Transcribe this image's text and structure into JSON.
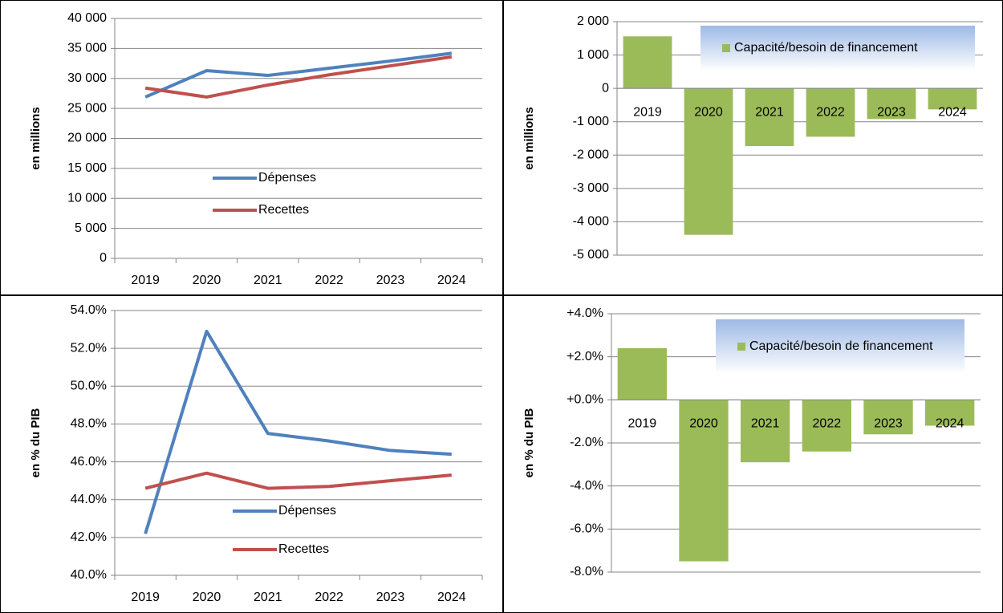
{
  "chart_data": [
    {
      "type": "line",
      "y_label": "en millions",
      "categories": [
        "2019",
        "2020",
        "2021",
        "2022",
        "2023",
        "2024"
      ],
      "series": [
        {
          "name": "Dépenses",
          "color": "#4f81bd",
          "values": [
            26900,
            31300,
            30500,
            31700,
            32900,
            34200
          ]
        },
        {
          "name": "Recettes",
          "color": "#c0504d",
          "values": [
            28400,
            26900,
            28900,
            30600,
            32100,
            33600
          ]
        }
      ],
      "ylim": [
        0,
        40000
      ],
      "yticks": [
        0,
        {
          "value": 5000,
          "label": "5 000"
        },
        {
          "value": 10000,
          "label": "10 000"
        },
        {
          "value": 15000,
          "label": "15 000"
        },
        {
          "value": 20000,
          "label": "20 000"
        },
        {
          "value": 25000,
          "label": "25 000"
        },
        {
          "value": 30000,
          "label": "30 000"
        },
        {
          "value": 35000,
          "label": "35 000"
        },
        {
          "value": 40000,
          "label": "40 000"
        }
      ],
      "grid": true
    },
    {
      "type": "bar",
      "y_label": "en millions",
      "categories": [
        "2019",
        "2020",
        "2021",
        "2022",
        "2023",
        "2024"
      ],
      "series": [
        {
          "name": "Capacité/besoin de financement",
          "color": "#9bbb59",
          "values": [
            1560,
            -4390,
            -1730,
            -1450,
            -920,
            -630
          ]
        }
      ],
      "ylim": [
        -5000,
        2000
      ],
      "yticks": [
        {
          "value": -5000,
          "label": "-5 000"
        },
        {
          "value": -4000,
          "label": "-4 000"
        },
        {
          "value": -3000,
          "label": "-3 000"
        },
        {
          "value": -2000,
          "label": "-2 000"
        },
        {
          "value": -1000,
          "label": "-1 000"
        },
        0,
        {
          "value": 1000,
          "label": "1 000"
        },
        {
          "value": 2000,
          "label": "2 000"
        }
      ],
      "grid": true
    },
    {
      "type": "line",
      "y_label": "en % du PIB",
      "categories": [
        "2019",
        "2020",
        "2021",
        "2022",
        "2023",
        "2024"
      ],
      "series": [
        {
          "name": "Dépenses",
          "color": "#4f81bd",
          "values": [
            42.2,
            52.9,
            47.5,
            47.1,
            46.6,
            46.4
          ]
        },
        {
          "name": "Recettes",
          "color": "#c0504d",
          "values": [
            44.6,
            45.4,
            44.6,
            44.7,
            45.0,
            45.3
          ]
        }
      ],
      "ylim": [
        40,
        54
      ],
      "yticks": [
        {
          "value": 40,
          "label": "40.0%"
        },
        {
          "value": 42,
          "label": "42.0%"
        },
        {
          "value": 44,
          "label": "44.0%"
        },
        {
          "value": 46,
          "label": "46.0%"
        },
        {
          "value": 48,
          "label": "48.0%"
        },
        {
          "value": 50,
          "label": "50.0%"
        },
        {
          "value": 52,
          "label": "52.0%"
        },
        {
          "value": 54,
          "label": "54.0%"
        }
      ],
      "grid": true
    },
    {
      "type": "bar",
      "y_label": "en % du PIB",
      "categories": [
        "2019",
        "2020",
        "2021",
        "2022",
        "2023",
        "2024"
      ],
      "series": [
        {
          "name": "Capacité/besoin de financement",
          "color": "#9bbb59",
          "values": [
            2.4,
            -7.5,
            -2.9,
            -2.4,
            -1.6,
            -1.2
          ]
        }
      ],
      "ylim": [
        -8,
        4
      ],
      "yticks": [
        {
          "value": -8,
          "label": "-8.0%"
        },
        {
          "value": -6,
          "label": "-6.0%"
        },
        {
          "value": -4,
          "label": "-4.0%"
        },
        {
          "value": -2,
          "label": "-2.0%"
        },
        {
          "value": 0,
          "label": "+0.0%"
        },
        {
          "value": 2,
          "label": "+2.0%"
        },
        {
          "value": 4,
          "label": "+4.0%"
        }
      ],
      "grid": true
    }
  ]
}
